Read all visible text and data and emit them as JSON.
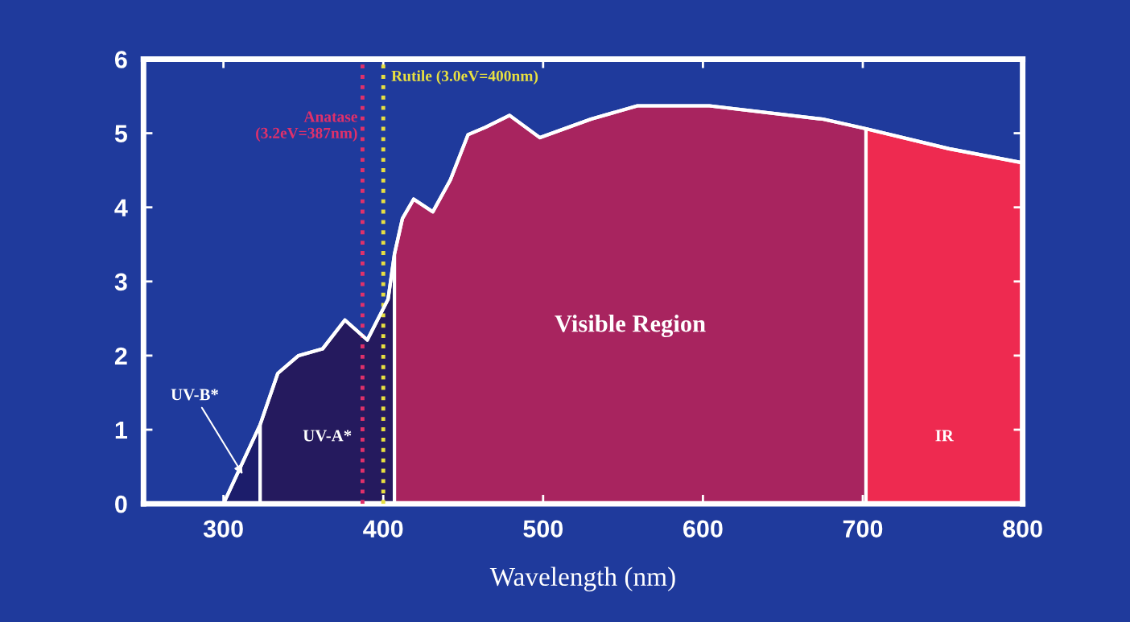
{
  "chart_data": {
    "type": "area",
    "xlabel": "Wavelength (nm)",
    "series": [
      {
        "color": "#1c1d6b",
        "x": [
          300,
          323
        ],
        "values": [
          0.0,
          1.07
        ]
      },
      {
        "color": "#251a5e",
        "x": [
          323,
          334,
          347,
          362,
          376,
          390,
          403,
          407
        ],
        "values": [
          1.07,
          1.76,
          2.0,
          2.09,
          2.48,
          2.21,
          2.76,
          3.37
        ]
      },
      {
        "color": "#a8245f",
        "x": [
          407,
          412,
          419,
          431,
          442,
          453,
          464,
          479,
          498,
          530,
          559,
          604,
          675,
          702
        ],
        "values": [
          3.37,
          3.85,
          4.11,
          3.94,
          4.37,
          4.98,
          5.08,
          5.24,
          4.94,
          5.19,
          5.37,
          5.37,
          5.19,
          5.06
        ]
      },
      {
        "color": "#ee2a50",
        "x": [
          702,
          754,
          800
        ],
        "values": [
          5.06,
          4.79,
          4.6
        ]
      },
      {
        "type": "line",
        "color": "#ffffff",
        "x": [
          300,
          323,
          334,
          347,
          362,
          376,
          390,
          403,
          407,
          412,
          419,
          431,
          442,
          453,
          464,
          479,
          498,
          530,
          559,
          604,
          675,
          702,
          754,
          800
        ],
        "values": [
          0.0,
          1.07,
          1.76,
          2.0,
          2.09,
          2.48,
          2.21,
          2.76,
          3.37,
          3.85,
          4.11,
          3.94,
          4.37,
          4.98,
          5.08,
          5.24,
          4.94,
          5.19,
          5.37,
          5.37,
          5.19,
          5.06,
          4.79,
          4.6
        ]
      }
    ],
    "xlim": [
      250,
      800
    ],
    "ylim": [
      0,
      6
    ],
    "xticks": [
      300,
      400,
      500,
      600,
      700,
      800
    ],
    "yticks": [
      0,
      1,
      2,
      3,
      4,
      5,
      6
    ],
    "annotations": [
      {
        "text": "UV-B*",
        "x": 312,
        "y": 0.4
      },
      "UV-A*",
      "Visible Region",
      "IR"
    ],
    "ref_lines": [
      {
        "axis": "x",
        "value": 387,
        "label": "Anatase\n(3.2eV=387nm)",
        "color": "#e0306a",
        "line_style": "dotted"
      },
      {
        "axis": "x",
        "value": 400,
        "label": "Rutile (3.0eV=400nm)",
        "color": "#e8e040",
        "line_style": "dotted"
      }
    ],
    "grid": false,
    "legend": false
  }
}
